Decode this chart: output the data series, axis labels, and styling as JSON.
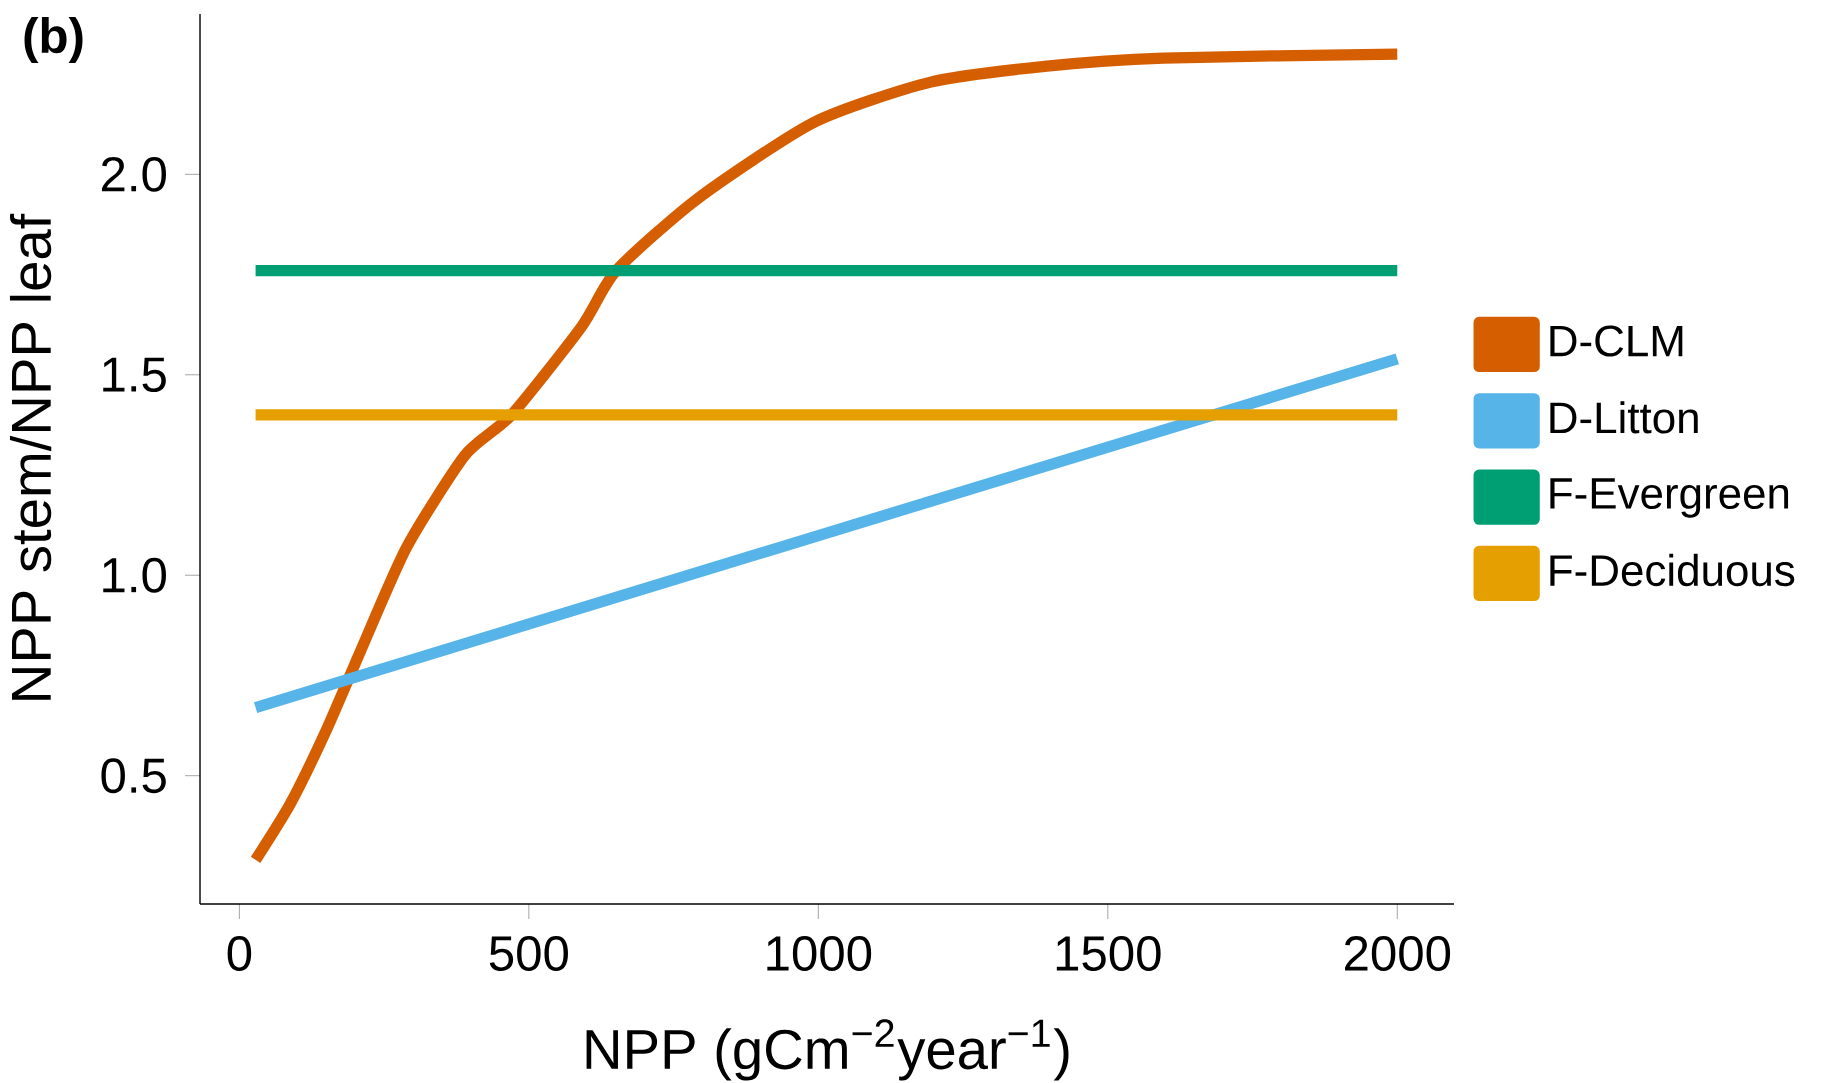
{
  "chart_data": {
    "type": "line",
    "xlabel": "NPP (gCm$^{−2}$year$^{−1}$)",
    "ylabel": "NPP stem/NPP leaf",
    "annotations": [
      "(b)"
    ],
    "xlim": [
      -68,
      2098
    ],
    "ylim": [
      0.18,
      2.4
    ],
    "xticks": [
      0,
      500,
      1000,
      1500,
      2000
    ],
    "yticks": [
      0.5,
      {
        "value": 1.0,
        "label": "1.0"
      },
      1.5,
      {
        "value": 2.0,
        "label": "2.0"
      }
    ],
    "legend": "right",
    "series": [
      {
        "name": "D-CLM",
        "color": "#d55e00",
        "x": [
          28,
          88,
          149,
          209,
          289,
          390,
          470,
          591,
          651,
          792,
          993,
          1194,
          1395,
          1596,
          2000
        ],
        "values": [
          0.29,
          0.43,
          0.61,
          0.81,
          1.07,
          1.3,
          1.4,
          1.62,
          1.76,
          1.94,
          2.13,
          2.23,
          2.27,
          2.29,
          2.3
        ]
      },
      {
        "name": "D-Litton",
        "color": "#56b4e9",
        "x": [
          28,
          2000
        ],
        "values": [
          0.67,
          1.54
        ]
      },
      {
        "name": "F-Evergreen",
        "color": "#009e73",
        "x": [
          28,
          2000
        ],
        "values": [
          1.76,
          1.76
        ]
      },
      {
        "name": "F-Deciduous",
        "color": "#e69f00",
        "x": [
          28,
          2000
        ],
        "values": [
          1.4,
          1.4
        ]
      }
    ]
  }
}
